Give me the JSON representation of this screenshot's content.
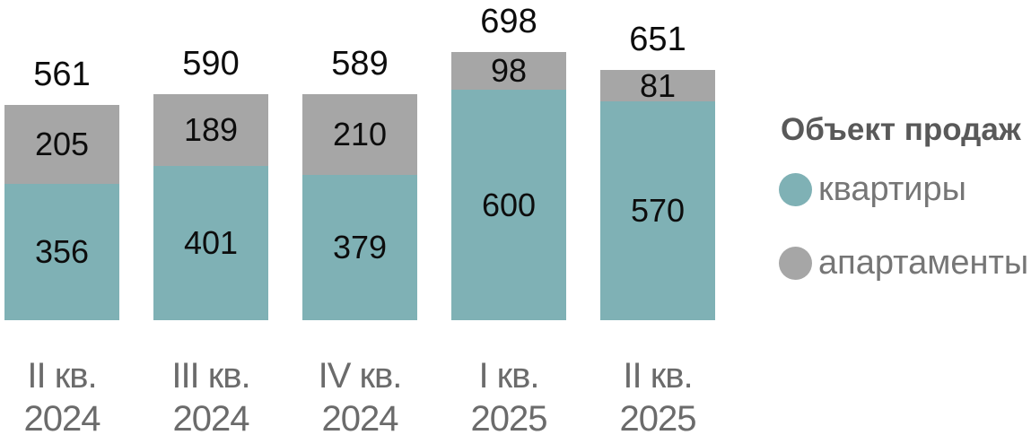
{
  "chart_data": {
    "type": "bar",
    "stacked": true,
    "orientation": "vertical",
    "gridlines": false,
    "categories": [
      {
        "quarter": "II кв.",
        "year": "2024"
      },
      {
        "quarter": "III кв.",
        "year": "2024"
      },
      {
        "quarter": "IV кв.",
        "year": "2024"
      },
      {
        "quarter": "I кв.",
        "year": "2025"
      },
      {
        "quarter": "II кв.",
        "year": "2025"
      }
    ],
    "series": [
      {
        "name": "квартиры",
        "color": "#7FB1B5",
        "values": [
          356,
          401,
          379,
          600,
          570
        ]
      },
      {
        "name": "апартаменты",
        "color": "#A6A6A6",
        "values": [
          205,
          189,
          210,
          98,
          81
        ]
      }
    ],
    "totals": [
      561,
      590,
      589,
      698,
      651
    ],
    "legend": {
      "title": "Объект продаж",
      "position": "right"
    },
    "colors": {
      "value_label": "#0D0D0D",
      "axis_label": "#6B6B6B",
      "legend_title": "#595959",
      "legend_label": "#767676",
      "background": "#FFFFFF"
    }
  }
}
